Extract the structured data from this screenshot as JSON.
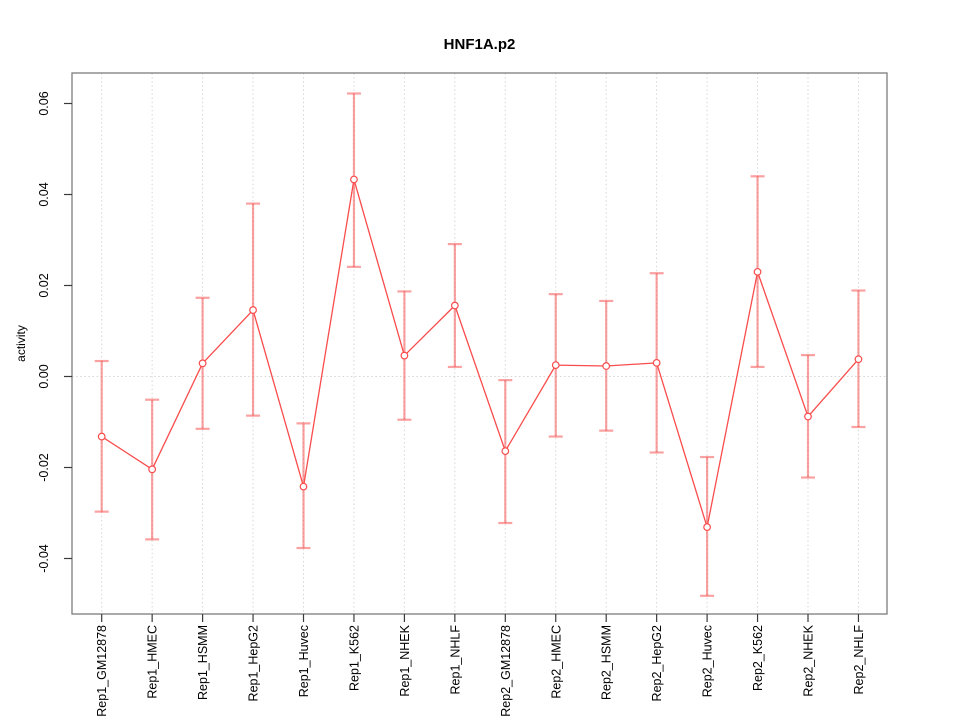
{
  "page": {
    "background": "#ffffff"
  },
  "colors": {
    "series_line": "#f94c4c",
    "error_bar": "#f65353",
    "grid": "#d6d6d6",
    "axis_box": "#7d7d7d",
    "tick": "#3a3a3a",
    "text": "#000000"
  },
  "chart_data": {
    "type": "line",
    "title": "HNF1A.p2",
    "xlabel": "",
    "ylabel": "activity",
    "ylim": [
      -0.052,
      0.066
    ],
    "yticks": [
      0.06,
      0.04,
      0.02,
      0,
      -0.02,
      -0.04
    ],
    "ytick_labels": [
      "0.06",
      "0.04",
      "0.02",
      "0.00",
      "-0.02",
      "-0.04"
    ],
    "grid": "vertical dotted gridline at each category; dotted horizontal reference line at y=0",
    "legend": "none",
    "marker": "open-circle",
    "reference_line_y": 0,
    "categories": [
      "Rep1_GM12878",
      "Rep1_HMEC",
      "Rep1_HSMM",
      "Rep1_HepG2",
      "Rep1_Huvec",
      "Rep1_K562",
      "Rep1_NHEK",
      "Rep1_NHLF",
      "Rep2_GM12878",
      "Rep2_HMEC",
      "Rep2_HSMM",
      "Rep2_HepG2",
      "Rep2_Huvec",
      "Rep2_K562",
      "Rep2_NHEK",
      "Rep2_NHLF"
    ],
    "series": [
      {
        "name": "activity",
        "values": [
          -0.0132,
          -0.0204,
          0.0029,
          0.0146,
          -0.0242,
          0.0433,
          0.0046,
          0.0156,
          -0.0164,
          0.0025,
          0.0023,
          0.003,
          -0.0331,
          0.023,
          -0.0088,
          0.0038
        ],
        "error_high": [
          0.0034,
          -0.0051,
          0.0173,
          0.038,
          -0.0103,
          0.0622,
          0.0187,
          0.0291,
          -0.0008,
          0.0181,
          0.0166,
          0.0227,
          -0.0177,
          0.044,
          0.0047,
          0.0189
        ],
        "error_low": [
          -0.0297,
          -0.0358,
          -0.0115,
          -0.0086,
          -0.0377,
          0.0241,
          -0.0095,
          0.0021,
          -0.0322,
          -0.0132,
          -0.0119,
          -0.0167,
          -0.0482,
          0.0021,
          -0.0222,
          -0.0111
        ]
      }
    ]
  }
}
